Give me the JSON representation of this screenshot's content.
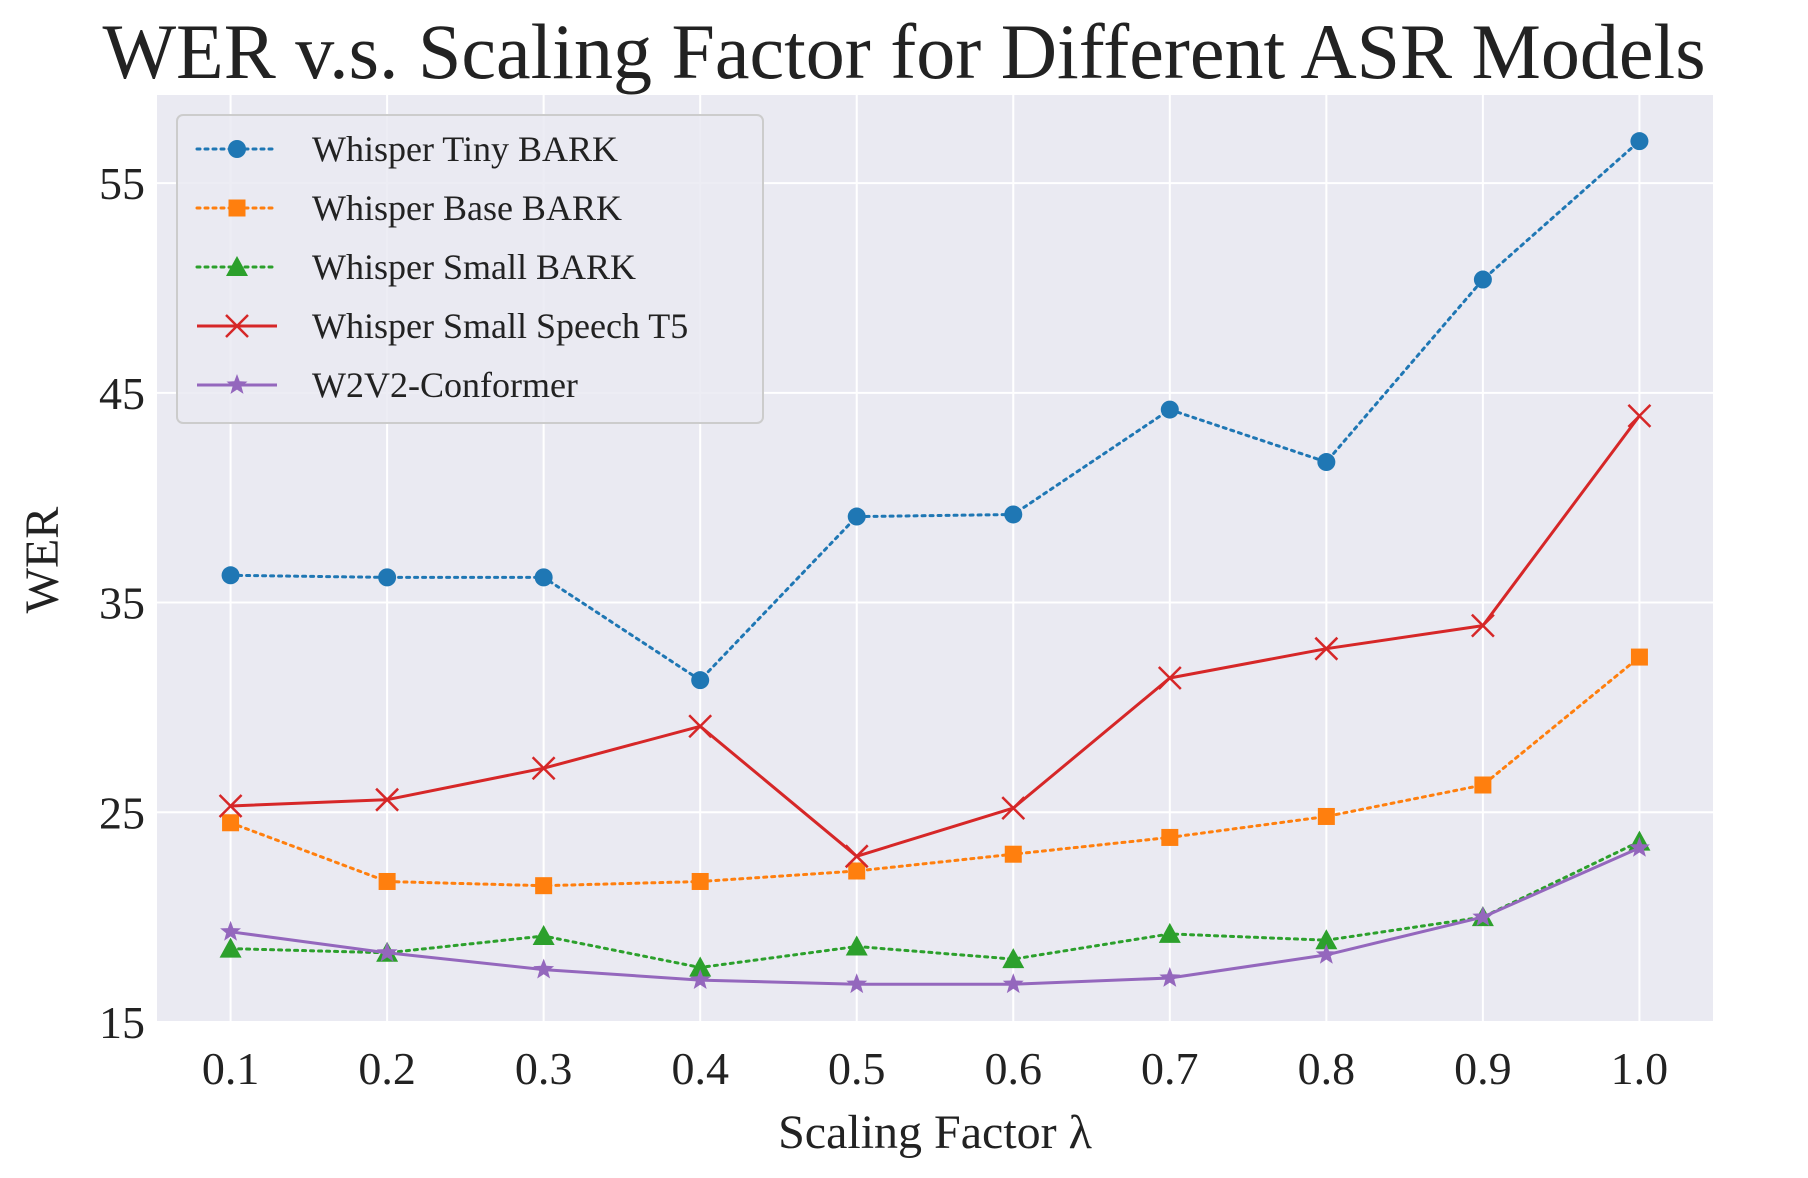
{
  "chart_data": {
    "type": "line",
    "title": "WER v.s. Scaling Factor for Different ASR Models",
    "xlabel": "Scaling Factor λ",
    "ylabel": "WER",
    "x": [
      0.1,
      0.2,
      0.3,
      0.4,
      0.5,
      0.6,
      0.7,
      0.8,
      0.9,
      1.0
    ],
    "x_tick_labels": [
      "0.1",
      "0.2",
      "0.3",
      "0.4",
      "0.5",
      "0.6",
      "0.7",
      "0.8",
      "0.9",
      "1.0"
    ],
    "y_ticks": [
      15,
      25,
      35,
      45,
      55
    ],
    "xlim": [
      0.053,
      1.047
    ],
    "ylim": [
      15,
      59.2
    ],
    "grid": true,
    "background": "#eaeaf2",
    "legend_position": "top-left",
    "series": [
      {
        "name": "Whisper Tiny BARK",
        "color": "#1f77b4",
        "marker": "circle",
        "linestyle": "dotted",
        "values": [
          36.3,
          36.2,
          36.2,
          31.3,
          39.1,
          39.2,
          44.2,
          41.7,
          50.4,
          57.0
        ]
      },
      {
        "name": "Whisper Base BARK",
        "color": "#ff7f0e",
        "marker": "square",
        "linestyle": "dotted",
        "values": [
          24.5,
          21.7,
          21.5,
          21.7,
          22.2,
          23.0,
          23.8,
          24.8,
          26.3,
          32.4
        ]
      },
      {
        "name": "Whisper Small BARK",
        "color": "#2ca02c",
        "marker": "triangle",
        "linestyle": "dotted",
        "values": [
          18.5,
          18.3,
          19.1,
          17.6,
          18.6,
          18.0,
          19.2,
          18.9,
          20.0,
          23.6
        ]
      },
      {
        "name": "Whisper Small Speech T5",
        "color": "#d62728",
        "marker": "x",
        "linestyle": "solid",
        "values": [
          25.3,
          25.6,
          27.1,
          29.1,
          22.9,
          25.2,
          31.4,
          32.8,
          33.9,
          43.9
        ]
      },
      {
        "name": "W2V2-Conformer",
        "color": "#9467bd",
        "marker": "star",
        "linestyle": "solid",
        "values": [
          19.3,
          18.3,
          17.5,
          17.0,
          16.8,
          16.8,
          17.1,
          18.2,
          20.0,
          23.3
        ]
      }
    ]
  }
}
